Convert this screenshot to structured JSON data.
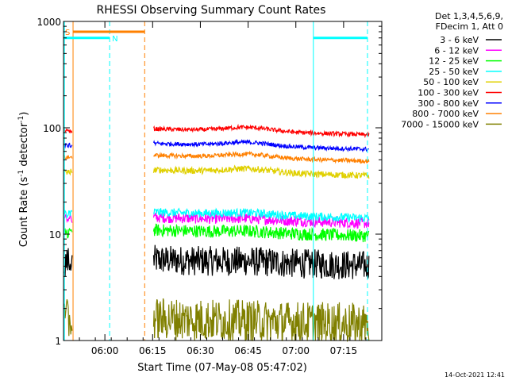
{
  "chart_data": {
    "type": "line",
    "title": "RHESSI Observing Summary Count Rates",
    "xlabel": "Start Time (07-May-08 05:47:02)",
    "ylabel_main": "Count Rate (s",
    "ylabel_sup1": "-1",
    "ylabel_mid": " detector",
    "ylabel_sup2": "-1",
    "ylabel_end": ")",
    "yscale": "log",
    "ylim": [
      1,
      1000
    ],
    "xlim_minutes": [
      0,
      100
    ],
    "x_tick_labels": [
      {
        "min": 13,
        "label": "06:00"
      },
      {
        "min": 28,
        "label": "06:15"
      },
      {
        "min": 43,
        "label": "06:30"
      },
      {
        "min": 58,
        "label": "06:45"
      },
      {
        "min": 73,
        "label": "07:00"
      },
      {
        "min": 88,
        "label": "07:15"
      }
    ],
    "y_tick_labels": [
      {
        "value": 1,
        "label": "1"
      },
      {
        "value": 10,
        "label": "10"
      },
      {
        "value": 100,
        "label": "100"
      },
      {
        "value": 1000,
        "label": "1000"
      }
    ],
    "legend_header": [
      "Det 1,3,4,5,6,9,",
      "FDecim 1, Att 0"
    ],
    "series": [
      {
        "name": "3 - 6 keV",
        "color": "#000000",
        "base": 5.0,
        "noise": 0.14,
        "bump": 0.02
      },
      {
        "name": "6 - 12 keV",
        "color": "#ff00ff",
        "base": 12.5,
        "noise": 0.05,
        "bump": 0.03
      },
      {
        "name": "12 - 25 keV",
        "color": "#00ff00",
        "base": 9.5,
        "noise": 0.06,
        "bump": 0.03
      },
      {
        "name": "25 - 50 keV",
        "color": "#00ffff",
        "base": 14.0,
        "noise": 0.04,
        "bump": 0.04
      },
      {
        "name": "50 - 100 keV",
        "color": "#e0d000",
        "base": 35.0,
        "noise": 0.03,
        "bump": 0.08
      },
      {
        "name": "100 - 300 keV",
        "color": "#ff0000",
        "base": 85.0,
        "noise": 0.02,
        "bump": 0.09
      },
      {
        "name": "300 - 800 keV",
        "color": "#0000ff",
        "base": 62.0,
        "noise": 0.02,
        "bump": 0.08
      },
      {
        "name": "800 - 7000 keV",
        "color": "#ff8000",
        "base": 48.0,
        "noise": 0.02,
        "bump": 0.08
      },
      {
        "name": "7000 - 15000 keV",
        "color": "#808000",
        "base": 1.4,
        "noise": 0.2,
        "bump": 0.0
      }
    ],
    "gaps_minutes": [
      [
        3,
        28
      ]
    ],
    "flags": [
      {
        "label": "N",
        "color": "#00ffff",
        "level": 700
      },
      {
        "label": "S",
        "color": "#ff8000",
        "level": 800
      }
    ],
    "footer_date": "14-Oct-2021 12:41"
  }
}
